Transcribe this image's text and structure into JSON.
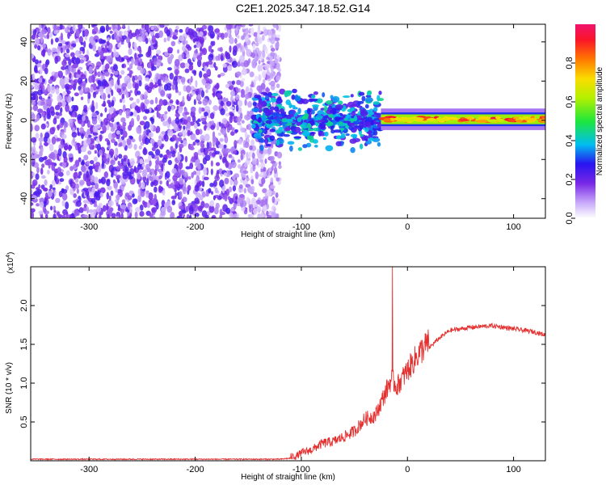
{
  "figure": {
    "title": "C2E1.2025.347.18.52.G14"
  },
  "chart_data": [
    {
      "type": "heatmap",
      "title": "C2E1.2025.347.18.52.G14",
      "xlabel": "Height of straight line (km)",
      "ylabel": "Frequency (Hz)",
      "xlim": [
        -355,
        130
      ],
      "ylim": [
        -50,
        49
      ],
      "xticks": [
        -300,
        -200,
        -100,
        0,
        100
      ],
      "xtick_labels": [
        "-300",
        "-200",
        "-100",
        "0",
        "100"
      ],
      "yticks": [
        -40,
        -20,
        0,
        20,
        40
      ],
      "ytick_labels": [
        "-40",
        "-20",
        "0",
        "20",
        "40"
      ],
      "colorbar": {
        "label": "Normalized spectral amplitude",
        "range": [
          0,
          1
        ],
        "ticks": [
          0.0,
          0.2,
          0.4,
          0.6,
          0.8
        ],
        "tick_labels": [
          "0.0",
          "0.2",
          "0.4",
          "0.6",
          "0.8"
        ]
      },
      "regions": [
        {
          "name": "broadband noise",
          "x_range": [
            -355,
            -120
          ],
          "y_range": [
            -50,
            49
          ],
          "amplitude": [
            0.05,
            0.25
          ]
        },
        {
          "name": "scattered echoes",
          "x_range": [
            -145,
            -25
          ],
          "y_range": [
            -12,
            12
          ],
          "amplitude": [
            0.2,
            0.45
          ]
        },
        {
          "name": "steady signal band",
          "x_range": [
            -25,
            130
          ],
          "y_range": [
            -2,
            3
          ],
          "amplitude": [
            0.6,
            0.95
          ]
        }
      ]
    },
    {
      "type": "line",
      "xlabel": "Height of straight line (km)",
      "ylabel": "SNR (10 * v/v)",
      "y_multiplier": "(x10",
      "y_multiplier_exp": "4",
      "y_multiplier_close": ")",
      "xlim": [
        -355,
        130
      ],
      "ylim": [
        0,
        2.5
      ],
      "xticks": [
        -300,
        -200,
        -100,
        0,
        100
      ],
      "xtick_labels": [
        "-300",
        "-200",
        "-100",
        "0",
        "100"
      ],
      "yticks": [
        0.5,
        1.0,
        1.5,
        2.0
      ],
      "ytick_labels": [
        "0.5",
        "1.0",
        "1.5",
        "2.0"
      ],
      "series": [
        {
          "name": "SNR",
          "color": "#e53030",
          "x": [
            -355,
            -300,
            -200,
            -120,
            -105,
            -100,
            -90,
            -80,
            -70,
            -60,
            -50,
            -40,
            -30,
            -25,
            -20,
            -15,
            -10,
            -5,
            0,
            10,
            20,
            30,
            40,
            60,
            80,
            90,
            100,
            110,
            120,
            130
          ],
          "y": [
            0.02,
            0.02,
            0.02,
            0.02,
            0.04,
            0.08,
            0.12,
            0.2,
            0.22,
            0.28,
            0.35,
            0.5,
            0.55,
            0.7,
            0.85,
            1.0,
            0.9,
            1.0,
            1.1,
            1.3,
            1.45,
            1.58,
            1.68,
            1.72,
            1.74,
            1.72,
            1.7,
            1.68,
            1.66,
            1.62
          ],
          "spike": {
            "x": -14,
            "y": 2.5
          },
          "noise_amplitude": 0.15
        }
      ]
    }
  ]
}
